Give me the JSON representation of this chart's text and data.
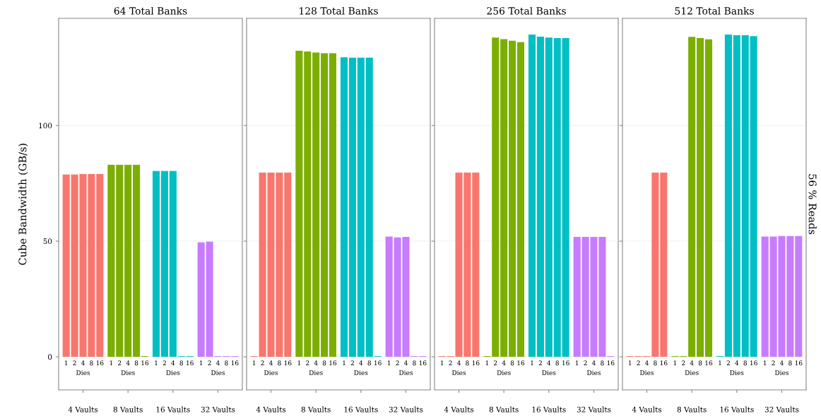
{
  "chart_data": [
    {
      "type": "bar",
      "title": "64 Total Banks",
      "ylabel": "Cube Bandwidth (GB/s)",
      "categories": [
        "1",
        "2",
        "4",
        "8",
        "16",
        "1",
        "2",
        "4",
        "8",
        "16",
        "1",
        "2",
        "4",
        "8",
        "16",
        "1",
        "2",
        "4",
        "8",
        "16"
      ],
      "series": [
        {
          "color": "#f8766d",
          "values": [
            78.8,
            78.8,
            79,
            79,
            79,
            null,
            null,
            null,
            null,
            null,
            null,
            null,
            null,
            null,
            null,
            null,
            null,
            null,
            null,
            null
          ]
        },
        {
          "color": "#7cae00",
          "values": [
            null,
            null,
            null,
            null,
            null,
            83,
            83,
            83,
            83,
            0.3,
            null,
            null,
            null,
            null,
            null,
            null,
            null,
            null,
            null,
            null
          ]
        },
        {
          "color": "#00bfc4",
          "values": [
            null,
            null,
            null,
            null,
            null,
            null,
            null,
            null,
            null,
            null,
            80.3,
            80.3,
            80.3,
            0.3,
            0.3,
            null,
            null,
            null,
            null,
            null
          ]
        },
        {
          "color": "#c77cff",
          "values": [
            null,
            null,
            null,
            null,
            null,
            null,
            null,
            null,
            null,
            null,
            null,
            null,
            null,
            null,
            null,
            49.5,
            49.8,
            0.3,
            0.3,
            0.3
          ]
        }
      ],
      "annotations": [
        "Dies",
        "Dies",
        "Dies",
        "Dies",
        "4 Vaults",
        "8 Vaults",
        "16 Vaults",
        "32 Vaults"
      ],
      "ylim": [
        -14.3,
        146.3
      ],
      "yticks": [
        0,
        50,
        100
      ],
      "grid": "y"
    },
    {
      "type": "bar",
      "title": "128 Total Banks",
      "categories": [
        "1",
        "2",
        "4",
        "8",
        "16",
        "1",
        "2",
        "4",
        "8",
        "16",
        "1",
        "2",
        "4",
        "8",
        "16",
        "1",
        "2",
        "4",
        "8",
        "16"
      ],
      "series": [
        {
          "color": "#f8766d",
          "values": [
            0.3,
            79.6,
            79.6,
            79.6,
            79.6,
            null,
            null,
            null,
            null,
            null,
            null,
            null,
            null,
            null,
            null,
            null,
            null,
            null,
            null,
            null
          ]
        },
        {
          "color": "#7cae00",
          "values": [
            null,
            null,
            null,
            null,
            null,
            132.3,
            132,
            131.5,
            131.2,
            131.2,
            null,
            null,
            null,
            null,
            null,
            null,
            null,
            null,
            null,
            null
          ]
        },
        {
          "color": "#00bfc4",
          "values": [
            null,
            null,
            null,
            null,
            null,
            null,
            null,
            null,
            null,
            null,
            129.5,
            129.3,
            129.3,
            129.3,
            0.3,
            null,
            null,
            null,
            null,
            null
          ]
        },
        {
          "color": "#c77cff",
          "values": [
            null,
            null,
            null,
            null,
            null,
            null,
            null,
            null,
            null,
            null,
            null,
            null,
            null,
            null,
            null,
            52,
            51.6,
            51.8,
            0.3,
            0.3
          ]
        }
      ],
      "annotations": [
        "Dies",
        "Dies",
        "Dies",
        "Dies",
        "4 Vaults",
        "8 Vaults",
        "16 Vaults",
        "32 Vaults"
      ],
      "ylim": [
        -14.3,
        146.3
      ],
      "yticks": [
        0,
        50,
        100
      ],
      "grid": "y",
      "tick_labels": "x"
    },
    {
      "type": "bar",
      "title": "256 Total Banks",
      "categories": [
        "1",
        "2",
        "4",
        "8",
        "16",
        "1",
        "2",
        "4",
        "8",
        "16",
        "1",
        "2",
        "4",
        "8",
        "16",
        "1",
        "2",
        "4",
        "8",
        "16"
      ],
      "series": [
        {
          "color": "#f8766d",
          "values": [
            0.3,
            0.3,
            79.6,
            79.6,
            79.6,
            null,
            null,
            null,
            null,
            null,
            null,
            null,
            null,
            null,
            null,
            null,
            null,
            null,
            null,
            null
          ]
        },
        {
          "color": "#7cae00",
          "values": [
            null,
            null,
            null,
            null,
            null,
            0.3,
            138,
            137.3,
            136.6,
            136,
            null,
            null,
            null,
            null,
            null,
            null,
            null,
            null,
            null,
            null
          ]
        },
        {
          "color": "#00bfc4",
          "values": [
            null,
            null,
            null,
            null,
            null,
            null,
            null,
            null,
            null,
            null,
            139.3,
            138.4,
            138,
            137.8,
            137.8,
            null,
            null,
            null,
            null,
            null
          ]
        },
        {
          "color": "#c77cff",
          "values": [
            null,
            null,
            null,
            null,
            null,
            null,
            null,
            null,
            null,
            null,
            null,
            null,
            null,
            null,
            null,
            51.8,
            51.8,
            51.8,
            51.8,
            0.3
          ]
        }
      ],
      "annotations": [
        "Dies",
        "Dies",
        "Dies",
        "Dies",
        "4 Vaults",
        "8 Vaults",
        "16 Vaults",
        "32 Vaults"
      ],
      "ylim": [
        -14.3,
        146.3
      ],
      "yticks": [
        0,
        50,
        100
      ],
      "grid": "y",
      "tick_labels": "x"
    },
    {
      "type": "bar",
      "title": "512 Total Banks",
      "y2label": "56 % Reads",
      "categories": [
        "1",
        "2",
        "4",
        "8",
        "16",
        "1",
        "2",
        "4",
        "8",
        "16",
        "1",
        "2",
        "4",
        "8",
        "16",
        "1",
        "2",
        "4",
        "8",
        "16"
      ],
      "series": [
        {
          "color": "#f8766d",
          "values": [
            0.3,
            0.3,
            0.3,
            79.6,
            79.6,
            null,
            null,
            null,
            null,
            null,
            null,
            null,
            null,
            null,
            null,
            null,
            null,
            null,
            null,
            null
          ]
        },
        {
          "color": "#7cae00",
          "values": [
            null,
            null,
            null,
            null,
            null,
            0.3,
            0.3,
            138.3,
            137.8,
            137.2,
            null,
            null,
            null,
            null,
            null,
            null,
            null,
            null,
            null,
            null
          ]
        },
        {
          "color": "#00bfc4",
          "values": [
            null,
            null,
            null,
            null,
            null,
            null,
            null,
            null,
            null,
            null,
            0.3,
            139.3,
            139,
            139,
            138.6,
            null,
            null,
            null,
            null,
            null
          ]
        },
        {
          "color": "#c77cff",
          "values": [
            null,
            null,
            null,
            null,
            null,
            null,
            null,
            null,
            null,
            null,
            null,
            null,
            null,
            null,
            null,
            52,
            52,
            52.2,
            52.2,
            52.2
          ]
        }
      ],
      "annotations": [
        "Dies",
        "Dies",
        "Dies",
        "Dies",
        "4 Vaults",
        "8 Vaults",
        "16 Vaults",
        "32 Vaults"
      ],
      "ylim": [
        -14.3,
        146.3
      ],
      "yticks": [
        0,
        50,
        100
      ],
      "grid": "y",
      "tick_labels": "x"
    }
  ]
}
